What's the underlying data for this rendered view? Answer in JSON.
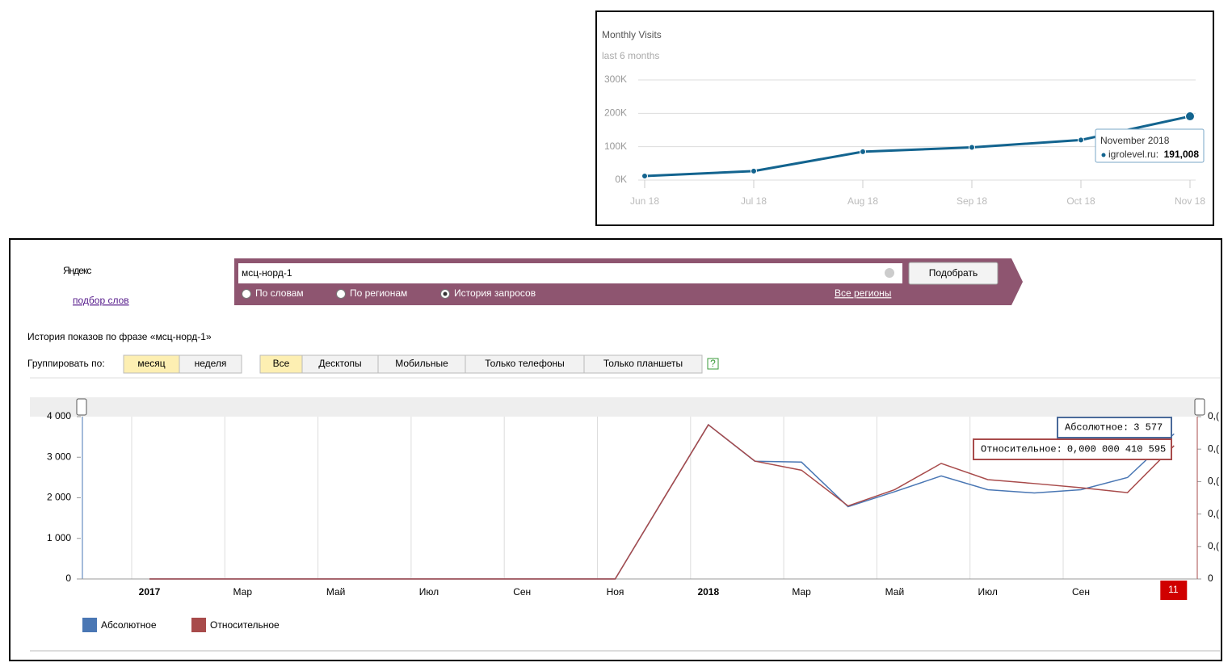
{
  "chart_data": [
    {
      "type": "line",
      "title": "Monthly Visits",
      "subtitle": "last 6 months",
      "x": [
        "Jun 18",
        "Jul 18",
        "Aug 18",
        "Sep 18",
        "Oct 18",
        "Nov 18"
      ],
      "series": [
        {
          "name": "igrolevel.ru:",
          "color": "#13648f",
          "values": [
            12000,
            27000,
            85000,
            98000,
            120000,
            191008
          ],
          "value_labels": [
            null,
            null,
            null,
            null,
            null,
            "191,008"
          ]
        }
      ],
      "tooltip_title": "November 2018",
      "ylim": [
        0,
        300000
      ],
      "yticks": [
        {
          "value": 0,
          "label": "0K"
        },
        {
          "value": 100000,
          "label": "100K"
        },
        {
          "value": 200000,
          "label": "200K"
        },
        {
          "value": 300000,
          "label": "300K"
        }
      ],
      "grid": true
    },
    {
      "type": "line",
      "categories": [
        "2017",
        null,
        "Мар",
        null,
        "Май",
        null,
        "Июл",
        null,
        "Сен",
        null,
        "Ноя",
        null,
        "2018",
        null,
        "Мар",
        null,
        "Май",
        null,
        "Июл",
        null,
        "Сен",
        null,
        "11"
      ],
      "series": [
        {
          "name": "Абсолютное",
          "color": "#4a77b4",
          "values": [
            0,
            0,
            0,
            0,
            0,
            0,
            0,
            0,
            0,
            0,
            0,
            1900,
            3800,
            2900,
            2880,
            1780,
            2150,
            2540,
            2200,
            2120,
            2200,
            2500,
            3577
          ],
          "value_labels": [
            null,
            null,
            null,
            null,
            null,
            null,
            null,
            null,
            null,
            null,
            null,
            null,
            null,
            null,
            null,
            null,
            null,
            null,
            null,
            null,
            null,
            null,
            "3 577"
          ]
        },
        {
          "name": "Относительное",
          "color": "#a84b4b",
          "axis": "y2",
          "values": [
            0,
            0,
            0,
            0,
            0,
            0,
            0,
            0,
            0,
            0,
            0,
            2.38e-07,
            4.75e-07,
            3.63e-07,
            3.35e-07,
            2.25e-07,
            2.75e-07,
            3.56e-07,
            3.06e-07,
            2.94e-07,
            2.81e-07,
            2.66e-07,
            4.10595e-07
          ],
          "value_labels": [
            null,
            null,
            null,
            null,
            null,
            null,
            null,
            null,
            null,
            null,
            null,
            null,
            null,
            null,
            null,
            null,
            null,
            null,
            null,
            null,
            null,
            null,
            "0,000 000 410 595"
          ]
        }
      ],
      "tooltip_labels": [
        "Абсолютное:",
        "Относительное:"
      ],
      "ylim": [
        0,
        4000
      ],
      "yticks": [
        0,
        {
          "value": 1000,
          "label": "1 000"
        },
        {
          "value": 2000,
          "label": "2 000"
        },
        {
          "value": 3000,
          "label": "3 000"
        },
        {
          "value": 4000,
          "label": "4 000"
        }
      ],
      "y2lim": [
        0,
        5e-07
      ],
      "y2ticks": [
        0,
        {
          "value": 1e-07,
          "label": "0,("
        },
        {
          "value": 2e-07,
          "label": "0,("
        },
        {
          "value": 3e-07,
          "label": "0,("
        },
        {
          "value": 4e-07,
          "label": "0,("
        },
        {
          "value": 5e-07,
          "label": "0,("
        }
      ],
      "grid": true,
      "legend": "bottom-left"
    }
  ],
  "yandex": {
    "logo": "Яндекс",
    "logo_link": "подбор слов",
    "query": "мсц-норд-1",
    "submit": "Подобрать",
    "modes": [
      "По словам",
      "По регионам",
      "История запросов"
    ],
    "selected_mode": 2,
    "regions": "Все регионы",
    "heading": "История показов по фразе «мсц-норд-1»",
    "group_label": "Группировать по:",
    "group_options": [
      "месяц",
      "неделя"
    ],
    "devices": [
      "Все",
      "Десктопы",
      "Мобильные",
      "Только телефоны",
      "Только планшеты"
    ],
    "help": "?"
  }
}
